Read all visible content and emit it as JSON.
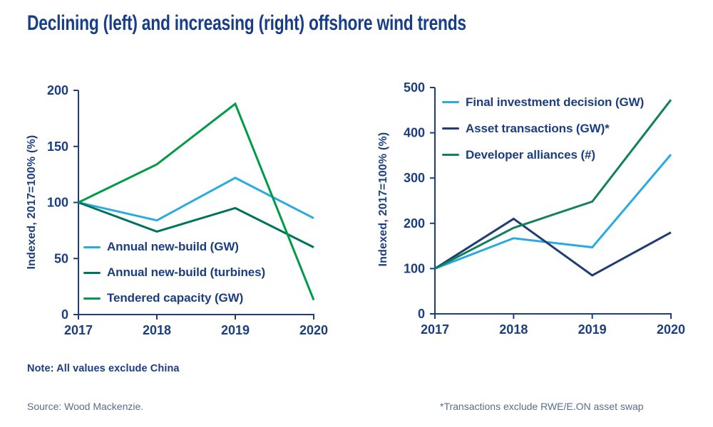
{
  "page": {
    "title": "Declining (left) and increasing (right) offshore wind trends",
    "note": "Note: All values exclude China",
    "source": "Source: Wood Mackenzie.",
    "footnote": "*Transactions exclude RWE/E.ON asset swap"
  },
  "colors": {
    "title_text": "#173e87",
    "navy_text": "#1b3e7f",
    "axis": "#1b3e7f",
    "muted_text": "#5a6b90",
    "light_blue": "#29abe2",
    "bright_green": "#009b46",
    "dark_teal": "#00735f",
    "teal_green": "#12805f",
    "dark_navy": "#1f3d73"
  },
  "chart_data": [
    {
      "type": "line",
      "title": "Declining offshore wind trends (left chart)",
      "ylabel": "Indexed, 2017=100% (%)",
      "xlabel": "",
      "categories": [
        "2017",
        "2018",
        "2019",
        "2020"
      ],
      "ylim": [
        0,
        200
      ],
      "ytick_step": 50,
      "grid": false,
      "legend_position": "inside-bottom-left",
      "series": [
        {
          "name": "Annual new-build (GW)",
          "color": "#29abe2",
          "values": [
            100,
            84,
            122,
            86
          ]
        },
        {
          "name": "Annual new-build (turbines)",
          "color": "#00735f",
          "values": [
            100,
            74,
            95,
            60
          ]
        },
        {
          "name": "Tendered capacity (GW)",
          "color": "#009b46",
          "values": [
            100,
            134,
            188,
            13
          ]
        }
      ]
    },
    {
      "type": "line",
      "title": "Increasing offshore wind trends (right chart)",
      "ylabel": "Indexed, 2017=100% (%)",
      "xlabel": "",
      "categories": [
        "2017",
        "2018",
        "2019",
        "2020"
      ],
      "ylim": [
        0,
        500
      ],
      "ytick_step": 100,
      "grid": false,
      "legend_position": "inside-top-left",
      "series": [
        {
          "name": "Final investment decision (GW)",
          "color": "#29abe2",
          "values": [
            100,
            167,
            147,
            352
          ]
        },
        {
          "name": "Asset transactions (GW)*",
          "color": "#1f3d73",
          "values": [
            100,
            210,
            85,
            180
          ]
        },
        {
          "name": "Developer alliances (#)",
          "color": "#12805f",
          "values": [
            100,
            190,
            248,
            473
          ]
        }
      ]
    }
  ]
}
